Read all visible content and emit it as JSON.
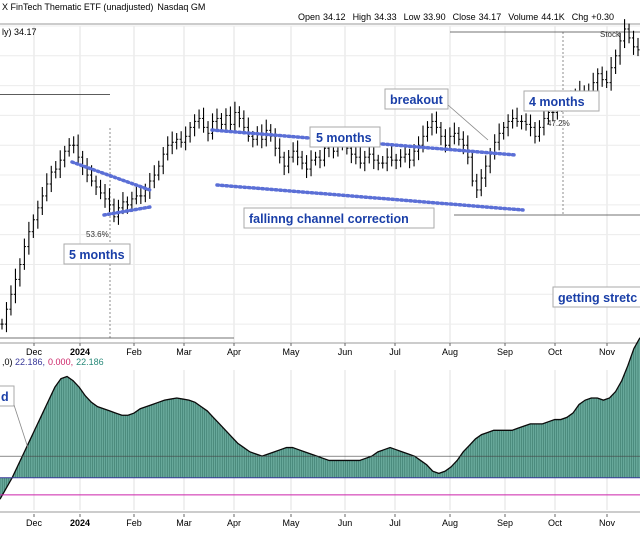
{
  "header": {
    "title": "X FinTech Thematic ETF (unadjusted)",
    "exchange": "Nasdaq GM",
    "open_label": "Open",
    "open": "34.12",
    "high_label": "High",
    "high": "34.33",
    "low_label": "Low",
    "low": "33.90",
    "close_label": "Close",
    "close": "34.17",
    "volume_label": "Volume",
    "volume": "44.1K",
    "chg_label": "Chg",
    "chg": "+0.30"
  },
  "price_label": "ly) 34.17",
  "watermark": "Stock",
  "indicator_label": {
    "prefix": ",0) ",
    "v1": "22.186,",
    "v2": "0.000,",
    "v3": "22.186"
  },
  "colors": {
    "bar": "#000000",
    "annotation_text": "#1a3fa8",
    "trend_line": "#5b6fd6",
    "histogram_fill": "#4e9a8a",
    "indicator_line": "#0a0a0a",
    "ind_v1": "#3a3a9a",
    "ind_v2": "#cc2266",
    "ind_v3": "#2a8a7a",
    "magenta_line": "#cc22aa"
  },
  "annotations": {
    "five_months_left": "5 months",
    "five_months_top": "5 months",
    "falling_channel": "fallinng channel correction",
    "breakout": "breakout",
    "four_months": "4 months",
    "getting_stretched": "getting stretc",
    "left_label": "d",
    "pct_left": "53.6%",
    "pct_right": "47.2%"
  },
  "chart_data": {
    "type": "bar",
    "subtype": "ohlc",
    "x_tick_labels": [
      "Dec",
      "2024",
      "Feb",
      "Mar",
      "Apr",
      "May",
      "Jun",
      "Jul",
      "Aug",
      "Sep",
      "Oct",
      "Nov"
    ],
    "bold_ticks": [
      "2024"
    ],
    "y_range": [
      24.4,
      35.0
    ],
    "grid": true,
    "price_closes": [
      25.0,
      25.5,
      26.0,
      26.5,
      27.0,
      27.6,
      28.1,
      28.5,
      28.9,
      29.3,
      29.7,
      30.1,
      30.2,
      30.5,
      30.8,
      31.0,
      31.0,
      30.6,
      30.3,
      30.0,
      29.8,
      29.6,
      29.4,
      29.2,
      29.0,
      28.6,
      28.9,
      29.1,
      29.0,
      29.2,
      29.3,
      29.3,
      29.5,
      29.8,
      30.0,
      30.3,
      30.7,
      31.0,
      31.1,
      31.2,
      31.1,
      31.3,
      31.6,
      31.8,
      31.9,
      31.6,
      31.4,
      31.8,
      31.9,
      31.7,
      32.0,
      31.7,
      32.1,
      31.9,
      31.6,
      31.3,
      31.2,
      31.4,
      31.2,
      31.5,
      31.3,
      30.9,
      30.6,
      30.3,
      30.6,
      30.8,
      30.6,
      30.4,
      30.2,
      30.5,
      30.6,
      30.5,
      30.9,
      31.0,
      30.8,
      31.1,
      31.1,
      30.9,
      30.7,
      30.6,
      30.4,
      30.6,
      30.7,
      30.5,
      30.4,
      30.4,
      30.6,
      30.5,
      30.5,
      30.6,
      30.7,
      30.5,
      30.8,
      31.0,
      31.3,
      31.6,
      31.8,
      31.6,
      31.3,
      31.0,
      31.3,
      31.4,
      31.2,
      31.0,
      30.6,
      29.8,
      29.5,
      29.9,
      30.3,
      30.7,
      31.1,
      31.4,
      31.6,
      31.8,
      31.9,
      31.8,
      31.8,
      31.7,
      31.6,
      31.3,
      31.6,
      31.9,
      32.1,
      32.1,
      32.3,
      32.4,
      32.6,
      32.5,
      32.6,
      32.8,
      32.7,
      32.8,
      33.1,
      33.4,
      33.2,
      33.1,
      33.6,
      34.0,
      34.5,
      34.9,
      34.6,
      34.3,
      34.2
    ],
    "resistance_level": 32.7,
    "support_level": 29.4,
    "indicator": {
      "name": "histogram",
      "values": [
        -10,
        -5,
        0,
        6,
        12,
        18,
        24,
        30,
        36,
        42,
        46,
        47,
        45,
        42,
        38,
        35,
        33,
        32,
        31,
        30,
        29,
        29,
        30,
        32,
        33,
        34,
        35,
        36,
        36.5,
        37,
        36.5,
        36,
        35,
        33,
        31,
        28,
        25,
        22,
        19,
        16,
        14,
        12,
        11,
        10,
        11,
        12,
        13,
        14,
        14,
        13,
        12,
        11,
        10,
        9,
        8,
        8,
        8,
        8,
        8,
        8,
        9,
        10,
        12,
        13,
        14,
        13,
        12,
        11,
        10,
        8,
        6,
        3,
        2,
        3,
        5,
        8,
        12,
        15,
        18,
        20,
        21,
        22,
        22,
        22,
        22,
        23,
        24,
        25,
        25,
        25,
        26,
        27,
        27,
        28,
        30,
        34,
        36,
        37,
        37,
        36,
        37,
        40,
        45,
        52,
        60,
        65
      ],
      "reference_lines": [
        0,
        -8,
        10
      ]
    }
  }
}
